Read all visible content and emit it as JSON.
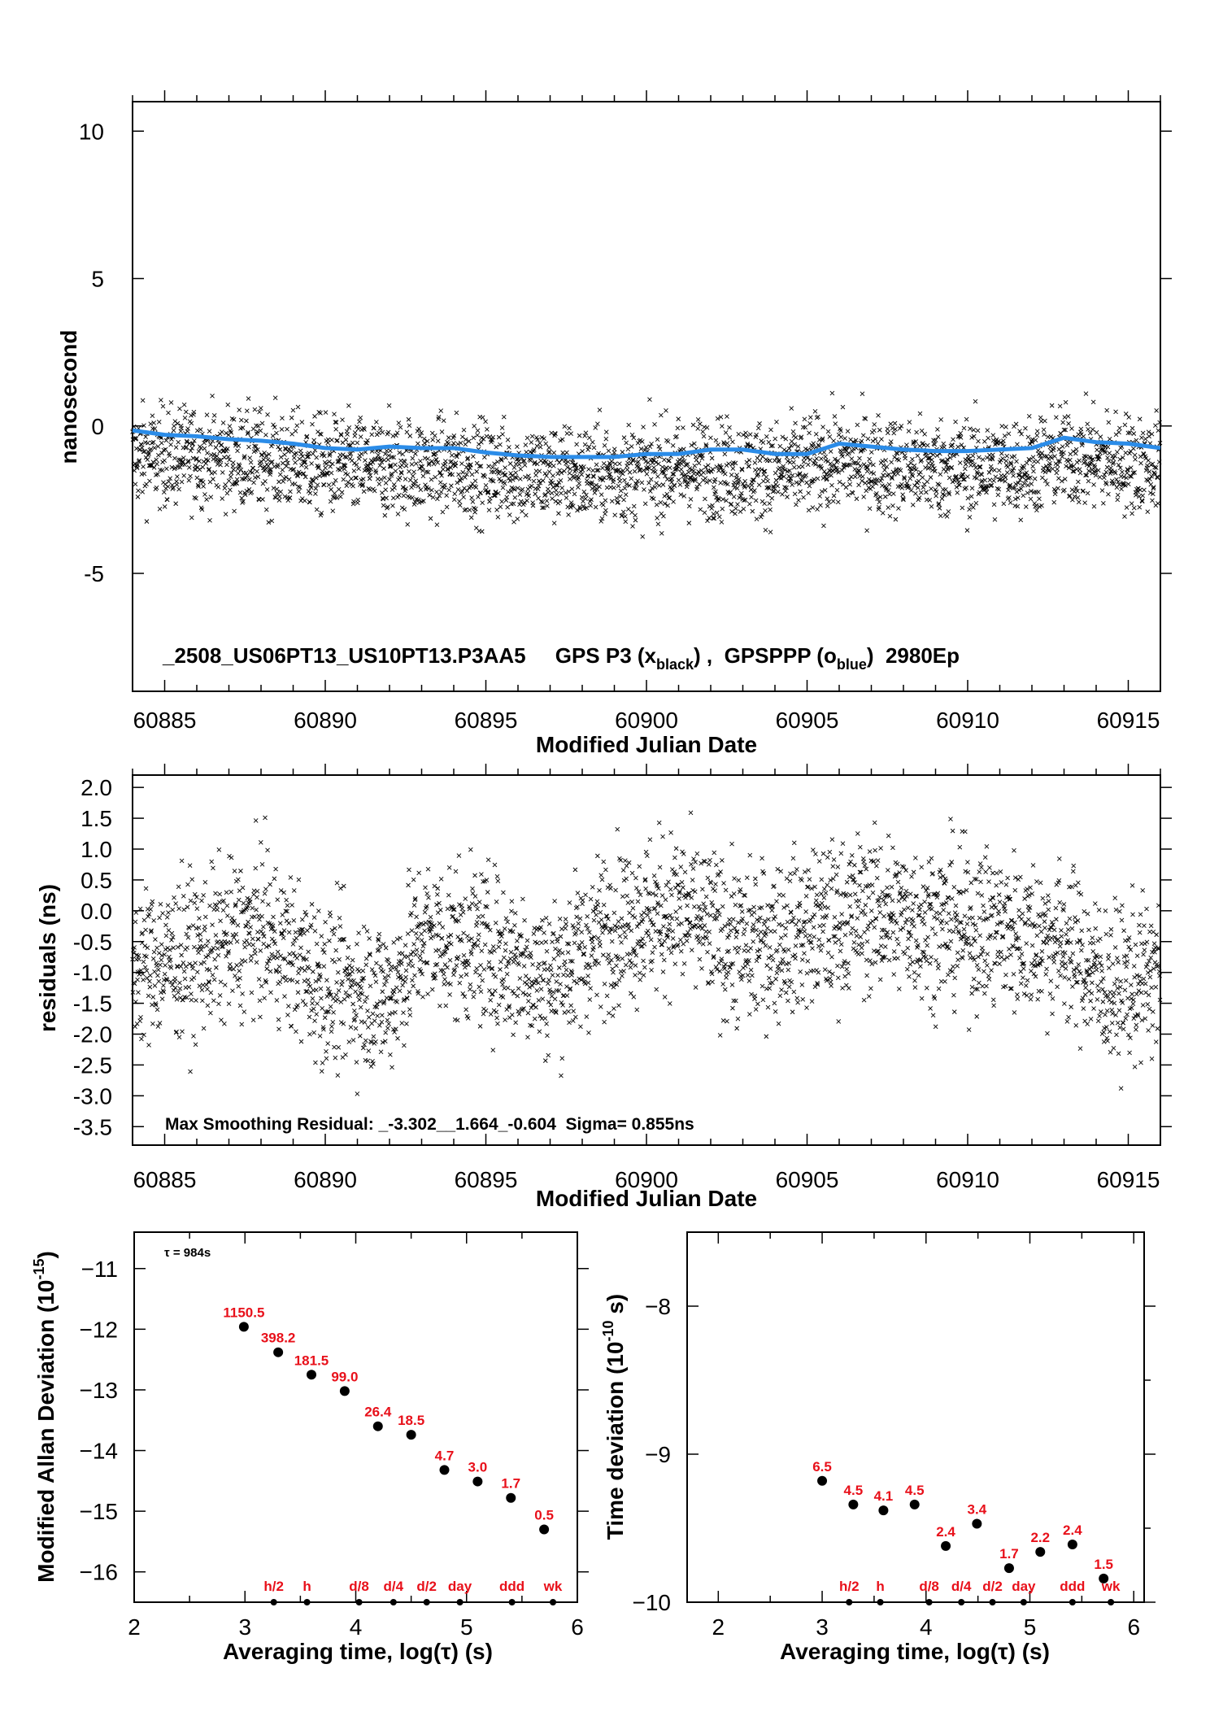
{
  "chart_data": [
    {
      "type": "scatter",
      "series": [
        {
          "legend_name": "x_black",
          "marker": "x",
          "color": "#000000",
          "trend": [
            [
              60884.0,
              -0.45
            ],
            [
              60886.0,
              -0.4
            ],
            [
              60888.0,
              -0.55
            ],
            [
              60890.0,
              -0.75
            ],
            [
              60892.0,
              -0.8
            ],
            [
              60894.0,
              -0.8
            ],
            [
              60896.0,
              -1.0
            ],
            [
              60898.0,
              -1.05
            ],
            [
              60900.0,
              -0.95
            ],
            [
              60902.0,
              -0.8
            ],
            [
              60904.0,
              -0.95
            ],
            [
              60906.0,
              -0.6
            ],
            [
              60908.0,
              -0.8
            ],
            [
              60910.0,
              -0.85
            ],
            [
              60912.0,
              -0.75
            ],
            [
              60913.0,
              -0.4
            ],
            [
              60914.0,
              -0.55
            ],
            [
              60916.0,
              -0.75
            ]
          ],
          "spread_ns": 1.2,
          "point_count": 2900
        },
        {
          "legend_name": "o_blue",
          "marker": "line",
          "color": "#2b8ce8",
          "points": [
            [
              60884.0,
              -0.15
            ],
            [
              60885.0,
              -0.3
            ],
            [
              60886.0,
              -0.35
            ],
            [
              60887.0,
              -0.45
            ],
            [
              60888.0,
              -0.5
            ],
            [
              60889.0,
              -0.6
            ],
            [
              60890.0,
              -0.75
            ],
            [
              60891.0,
              -0.8
            ],
            [
              60892.0,
              -0.7
            ],
            [
              60893.0,
              -0.75
            ],
            [
              60894.0,
              -0.75
            ],
            [
              60895.0,
              -0.9
            ],
            [
              60896.0,
              -1.0
            ],
            [
              60897.0,
              -1.05
            ],
            [
              60898.0,
              -1.05
            ],
            [
              60899.0,
              -1.05
            ],
            [
              60900.0,
              -0.95
            ],
            [
              60901.0,
              -0.95
            ],
            [
              60902.0,
              -0.8
            ],
            [
              60903.0,
              -0.8
            ],
            [
              60904.0,
              -0.95
            ],
            [
              60905.0,
              -0.95
            ],
            [
              60906.0,
              -0.6
            ],
            [
              60907.0,
              -0.7
            ],
            [
              60908.0,
              -0.8
            ],
            [
              60909.0,
              -0.85
            ],
            [
              60910.0,
              -0.85
            ],
            [
              60911.0,
              -0.8
            ],
            [
              60912.0,
              -0.75
            ],
            [
              60913.0,
              -0.4
            ],
            [
              60914.0,
              -0.55
            ],
            [
              60915.0,
              -0.6
            ],
            [
              60916.0,
              -0.75
            ]
          ]
        }
      ],
      "xlabel": "Modified Julian Date",
      "ylabel": "nanosecond",
      "xlim": [
        60884,
        60916
      ],
      "ylim": [
        -9,
        11
      ],
      "x_ticks": [
        60885,
        60890,
        60895,
        60900,
        60905,
        60910,
        60915
      ],
      "y_ticks": [
        10,
        5,
        0,
        -5
      ],
      "annotation": {
        "prefix": "_2508_US06PT13_US10PT13.P3AA5     GPS P3 (x",
        "sub1": "black",
        "mid": ") ,  GPSPPP (o",
        "sub2": "blue",
        "suffix": ")  2980Ep"
      }
    },
    {
      "type": "scatter",
      "series": [
        {
          "marker": "x",
          "color": "#000000",
          "trend": [
            [
              60884.0,
              -0.9
            ],
            [
              60886.0,
              -0.7
            ],
            [
              60888.0,
              -0.3
            ],
            [
              60890.0,
              -1.2
            ],
            [
              60892.0,
              -1.4
            ],
            [
              60893.0,
              -0.4
            ],
            [
              60895.0,
              -0.6
            ],
            [
              60897.0,
              -1.1
            ],
            [
              60899.0,
              -0.2
            ],
            [
              60901.0,
              0.0
            ],
            [
              60903.0,
              -0.6
            ],
            [
              60905.0,
              -0.3
            ],
            [
              60907.0,
              0.0
            ],
            [
              60909.0,
              -0.2
            ],
            [
              60911.0,
              -0.3
            ],
            [
              60913.0,
              -0.5
            ],
            [
              60914.5,
              -1.3
            ],
            [
              60916.0,
              -1.0
            ]
          ],
          "spread_ns": 0.9,
          "point_count": 2900
        }
      ],
      "xlabel": "Modified Julian Date",
      "ylabel": "residuals (ns)",
      "xlim": [
        60884,
        60916
      ],
      "ylim": [
        -3.8,
        2.2
      ],
      "x_ticks": [
        60885,
        60890,
        60895,
        60900,
        60905,
        60910,
        60915
      ],
      "y_ticks": [
        2.0,
        1.5,
        1.0,
        0.5,
        0.0,
        -0.5,
        -1.0,
        -1.5,
        -2.0,
        -2.5,
        -3.0,
        -3.5
      ],
      "y_tick_labels": [
        "2.0",
        "1.5",
        "1.0",
        "0.5",
        "0.0",
        "-0.5",
        "-1.0",
        "-1.5",
        "-2.0",
        "-2.5",
        "-3.0",
        "-3.5"
      ],
      "annotation": "Max Smoothing Residual: _-3.302__1.664_-0.604  Sigma= 0.855ns"
    },
    {
      "type": "scatter",
      "xlabel": "Averaging time, log(τ) (s)",
      "ylabel": "Modified Allan Deviation (10",
      "ylabel_exp": "-15",
      "ylabel_close": ")",
      "xlim": [
        2,
        6
      ],
      "ylim": [
        -16.5,
        -10.4
      ],
      "x_ticks": [
        2,
        3,
        4,
        5,
        6
      ],
      "y_ticks": [
        -11,
        -12,
        -13,
        -14,
        -15,
        -16
      ],
      "y_tick_labels": [
        "−11",
        "−12",
        "−13",
        "−14",
        "−15",
        "−16"
      ],
      "tau_note": "τ = 984s",
      "points": [
        {
          "x": 2.99,
          "y": -11.96,
          "label": "1150.5"
        },
        {
          "x": 3.3,
          "y": -12.38,
          "label": "398.2"
        },
        {
          "x": 3.6,
          "y": -12.75,
          "label": "181.5"
        },
        {
          "x": 3.9,
          "y": -13.02,
          "label": "99.0"
        },
        {
          "x": 4.2,
          "y": -13.6,
          "label": "26.4"
        },
        {
          "x": 4.5,
          "y": -13.74,
          "label": "18.5"
        },
        {
          "x": 4.8,
          "y": -14.32,
          "label": "4.7"
        },
        {
          "x": 5.1,
          "y": -14.51,
          "label": "3.0"
        },
        {
          "x": 5.4,
          "y": -14.78,
          "label": "1.7"
        },
        {
          "x": 5.7,
          "y": -15.3,
          "label": "0.5"
        }
      ],
      "markers": [
        {
          "x": 3.26,
          "label": "h/2"
        },
        {
          "x": 3.56,
          "label": "h"
        },
        {
          "x": 4.03,
          "label": "d/8"
        },
        {
          "x": 4.34,
          "label": "d/4"
        },
        {
          "x": 4.64,
          "label": "d/2"
        },
        {
          "x": 4.94,
          "label": "day"
        },
        {
          "x": 5.41,
          "label": "ddd"
        },
        {
          "x": 5.78,
          "label": "wk"
        }
      ]
    },
    {
      "type": "scatter",
      "xlabel": "Averaging time, log(τ) (s)",
      "ylabel": "Time deviation (10",
      "ylabel_exp": "-10",
      "ylabel_close": " s)",
      "xlim": [
        1.7,
        6.1
      ],
      "ylim": [
        -10.0,
        -7.5
      ],
      "x_ticks": [
        2,
        3,
        4,
        5,
        6
      ],
      "y_ticks": [
        -8,
        -9,
        -10
      ],
      "y_tick_labels": [
        "−8",
        "−9",
        "−10"
      ],
      "points": [
        {
          "x": 3.0,
          "y": -9.18,
          "label": "6.5"
        },
        {
          "x": 3.3,
          "y": -9.34,
          "label": "4.5"
        },
        {
          "x": 3.59,
          "y": -9.38,
          "label": "4.1"
        },
        {
          "x": 3.89,
          "y": -9.34,
          "label": "4.5"
        },
        {
          "x": 4.19,
          "y": -9.62,
          "label": "2.4"
        },
        {
          "x": 4.49,
          "y": -9.47,
          "label": "3.4"
        },
        {
          "x": 4.8,
          "y": -9.77,
          "label": "1.7"
        },
        {
          "x": 5.1,
          "y": -9.66,
          "label": "2.2"
        },
        {
          "x": 5.41,
          "y": -9.61,
          "label": "2.4"
        },
        {
          "x": 5.71,
          "y": -9.84,
          "label": "1.5"
        }
      ],
      "markers": [
        {
          "x": 3.26,
          "label": "h/2"
        },
        {
          "x": 3.56,
          "label": "h"
        },
        {
          "x": 4.03,
          "label": "d/8"
        },
        {
          "x": 4.34,
          "label": "d/4"
        },
        {
          "x": 4.64,
          "label": "d/2"
        },
        {
          "x": 4.94,
          "label": "day"
        },
        {
          "x": 5.41,
          "label": "ddd"
        },
        {
          "x": 5.78,
          "label": "wk"
        }
      ]
    }
  ]
}
